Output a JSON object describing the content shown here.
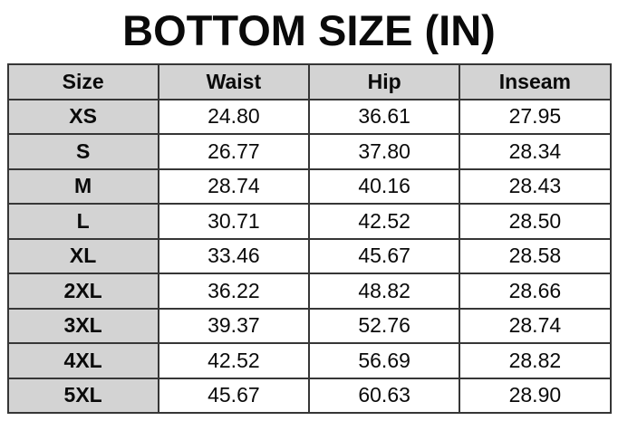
{
  "page": {
    "title": "BOTTOM SIZE (IN)"
  },
  "colors": {
    "background": "#ffffff",
    "header_cell_bg": "#d3d3d3",
    "data_cell_bg": "#ffffff",
    "border": "#363636",
    "text": "#0a0a0a"
  },
  "table": {
    "headers": [
      "Size",
      "Waist",
      "Hip",
      "Inseam"
    ],
    "rows": [
      {
        "size": "XS",
        "waist": "24.80",
        "hip": "36.61",
        "inseam": "27.95"
      },
      {
        "size": "S",
        "waist": "26.77",
        "hip": "37.80",
        "inseam": "28.34"
      },
      {
        "size": "M",
        "waist": "28.74",
        "hip": "40.16",
        "inseam": "28.43"
      },
      {
        "size": "L",
        "waist": "30.71",
        "hip": "42.52",
        "inseam": "28.50"
      },
      {
        "size": "XL",
        "waist": "33.46",
        "hip": "45.67",
        "inseam": "28.58"
      },
      {
        "size": "2XL",
        "waist": "36.22",
        "hip": "48.82",
        "inseam": "28.66"
      },
      {
        "size": "3XL",
        "waist": "39.37",
        "hip": "52.76",
        "inseam": "28.74"
      },
      {
        "size": "4XL",
        "waist": "42.52",
        "hip": "56.69",
        "inseam": "28.82"
      },
      {
        "size": "5XL",
        "waist": "45.67",
        "hip": "60.63",
        "inseam": "28.90"
      }
    ]
  },
  "chart_data": {
    "type": "table",
    "title": "BOTTOM SIZE (IN)",
    "columns": [
      "Size",
      "Waist",
      "Hip",
      "Inseam"
    ],
    "units": "inches",
    "rows": [
      [
        "XS",
        24.8,
        36.61,
        27.95
      ],
      [
        "S",
        26.77,
        37.8,
        28.34
      ],
      [
        "M",
        28.74,
        40.16,
        28.43
      ],
      [
        "L",
        30.71,
        42.52,
        28.5
      ],
      [
        "XL",
        33.46,
        45.67,
        28.58
      ],
      [
        "2XL",
        36.22,
        48.82,
        28.66
      ],
      [
        "3XL",
        39.37,
        52.76,
        28.74
      ],
      [
        "4XL",
        42.52,
        56.69,
        28.82
      ],
      [
        "5XL",
        45.67,
        60.63,
        28.9
      ]
    ]
  }
}
